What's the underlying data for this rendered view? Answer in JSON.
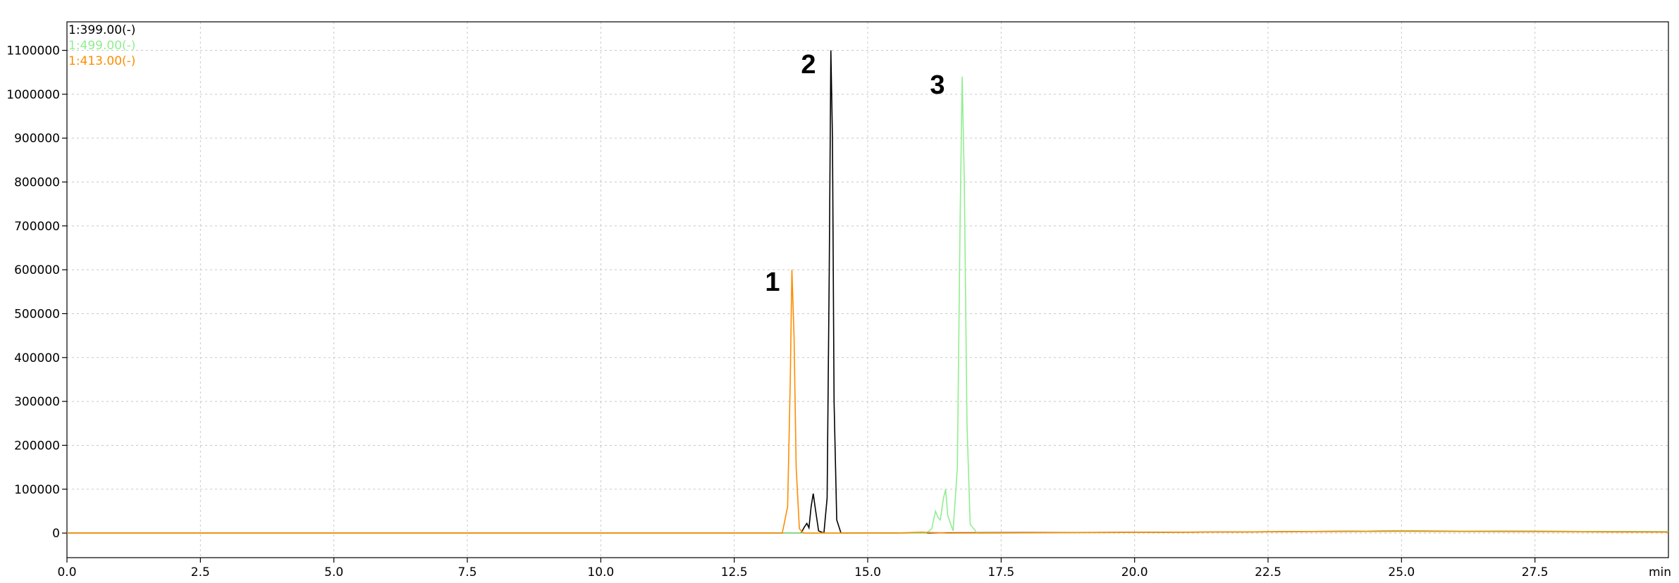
{
  "chart_data": {
    "type": "line",
    "x_label": "min",
    "xlim": [
      0,
      30
    ],
    "ylim": [
      -56000,
      1165000
    ],
    "xticks": [
      {
        "value": 0,
        "label": "0.0"
      },
      2.5,
      {
        "value": 5,
        "label": "5.0"
      },
      7.5,
      {
        "value": 10,
        "label": "10.0"
      },
      12.5,
      {
        "value": 15,
        "label": "15.0"
      },
      17.5,
      {
        "value": 20,
        "label": "20.0"
      },
      22.5,
      {
        "value": 25,
        "label": "25.0"
      },
      27.5
    ],
    "yticks": [
      0,
      100000,
      200000,
      300000,
      400000,
      500000,
      600000,
      700000,
      800000,
      900000,
      1000000,
      1100000
    ],
    "grid": true,
    "legend": "upper left",
    "annotations": [
      "1",
      "2",
      "3"
    ],
    "series": [
      {
        "name": "1:399.00(-)",
        "color": "#000000",
        "x": [
          0,
          13.75,
          13.82,
          13.86,
          13.9,
          13.94,
          13.98,
          14.02,
          14.08,
          14.18,
          14.24,
          14.28,
          14.31,
          14.34,
          14.37,
          14.42,
          14.5,
          21,
          25,
          30
        ],
        "values": [
          0,
          0,
          15000,
          22000,
          12000,
          60000,
          90000,
          55000,
          5000,
          0,
          80000,
          600000,
          1100000,
          900000,
          300000,
          30000,
          0,
          2000,
          5000,
          3000
        ]
      },
      {
        "name": "1:499.00(-)",
        "color": "#90ee90",
        "x": [
          0,
          16.1,
          16.2,
          16.27,
          16.32,
          16.36,
          16.42,
          16.46,
          16.5,
          16.6,
          16.68,
          16.73,
          16.77,
          16.81,
          16.86,
          16.92,
          17.05,
          21,
          25,
          30
        ],
        "values": [
          0,
          0,
          10000,
          50000,
          35000,
          30000,
          80000,
          100000,
          40000,
          5000,
          150000,
          700000,
          1040000,
          800000,
          250000,
          20000,
          0,
          2000,
          5000,
          3000
        ]
      },
      {
        "name": "1:413.00(-)",
        "color": "#ff8c00",
        "x": [
          0,
          13.4,
          13.5,
          13.55,
          13.58,
          13.62,
          13.66,
          13.72,
          13.8,
          15.5,
          16.0,
          16.5,
          21,
          25,
          28,
          30
        ],
        "values": [
          0,
          0,
          60000,
          350000,
          600000,
          450000,
          150000,
          10000,
          0,
          0,
          2000,
          0,
          2000,
          4000,
          3000,
          2000
        ]
      }
    ]
  }
}
